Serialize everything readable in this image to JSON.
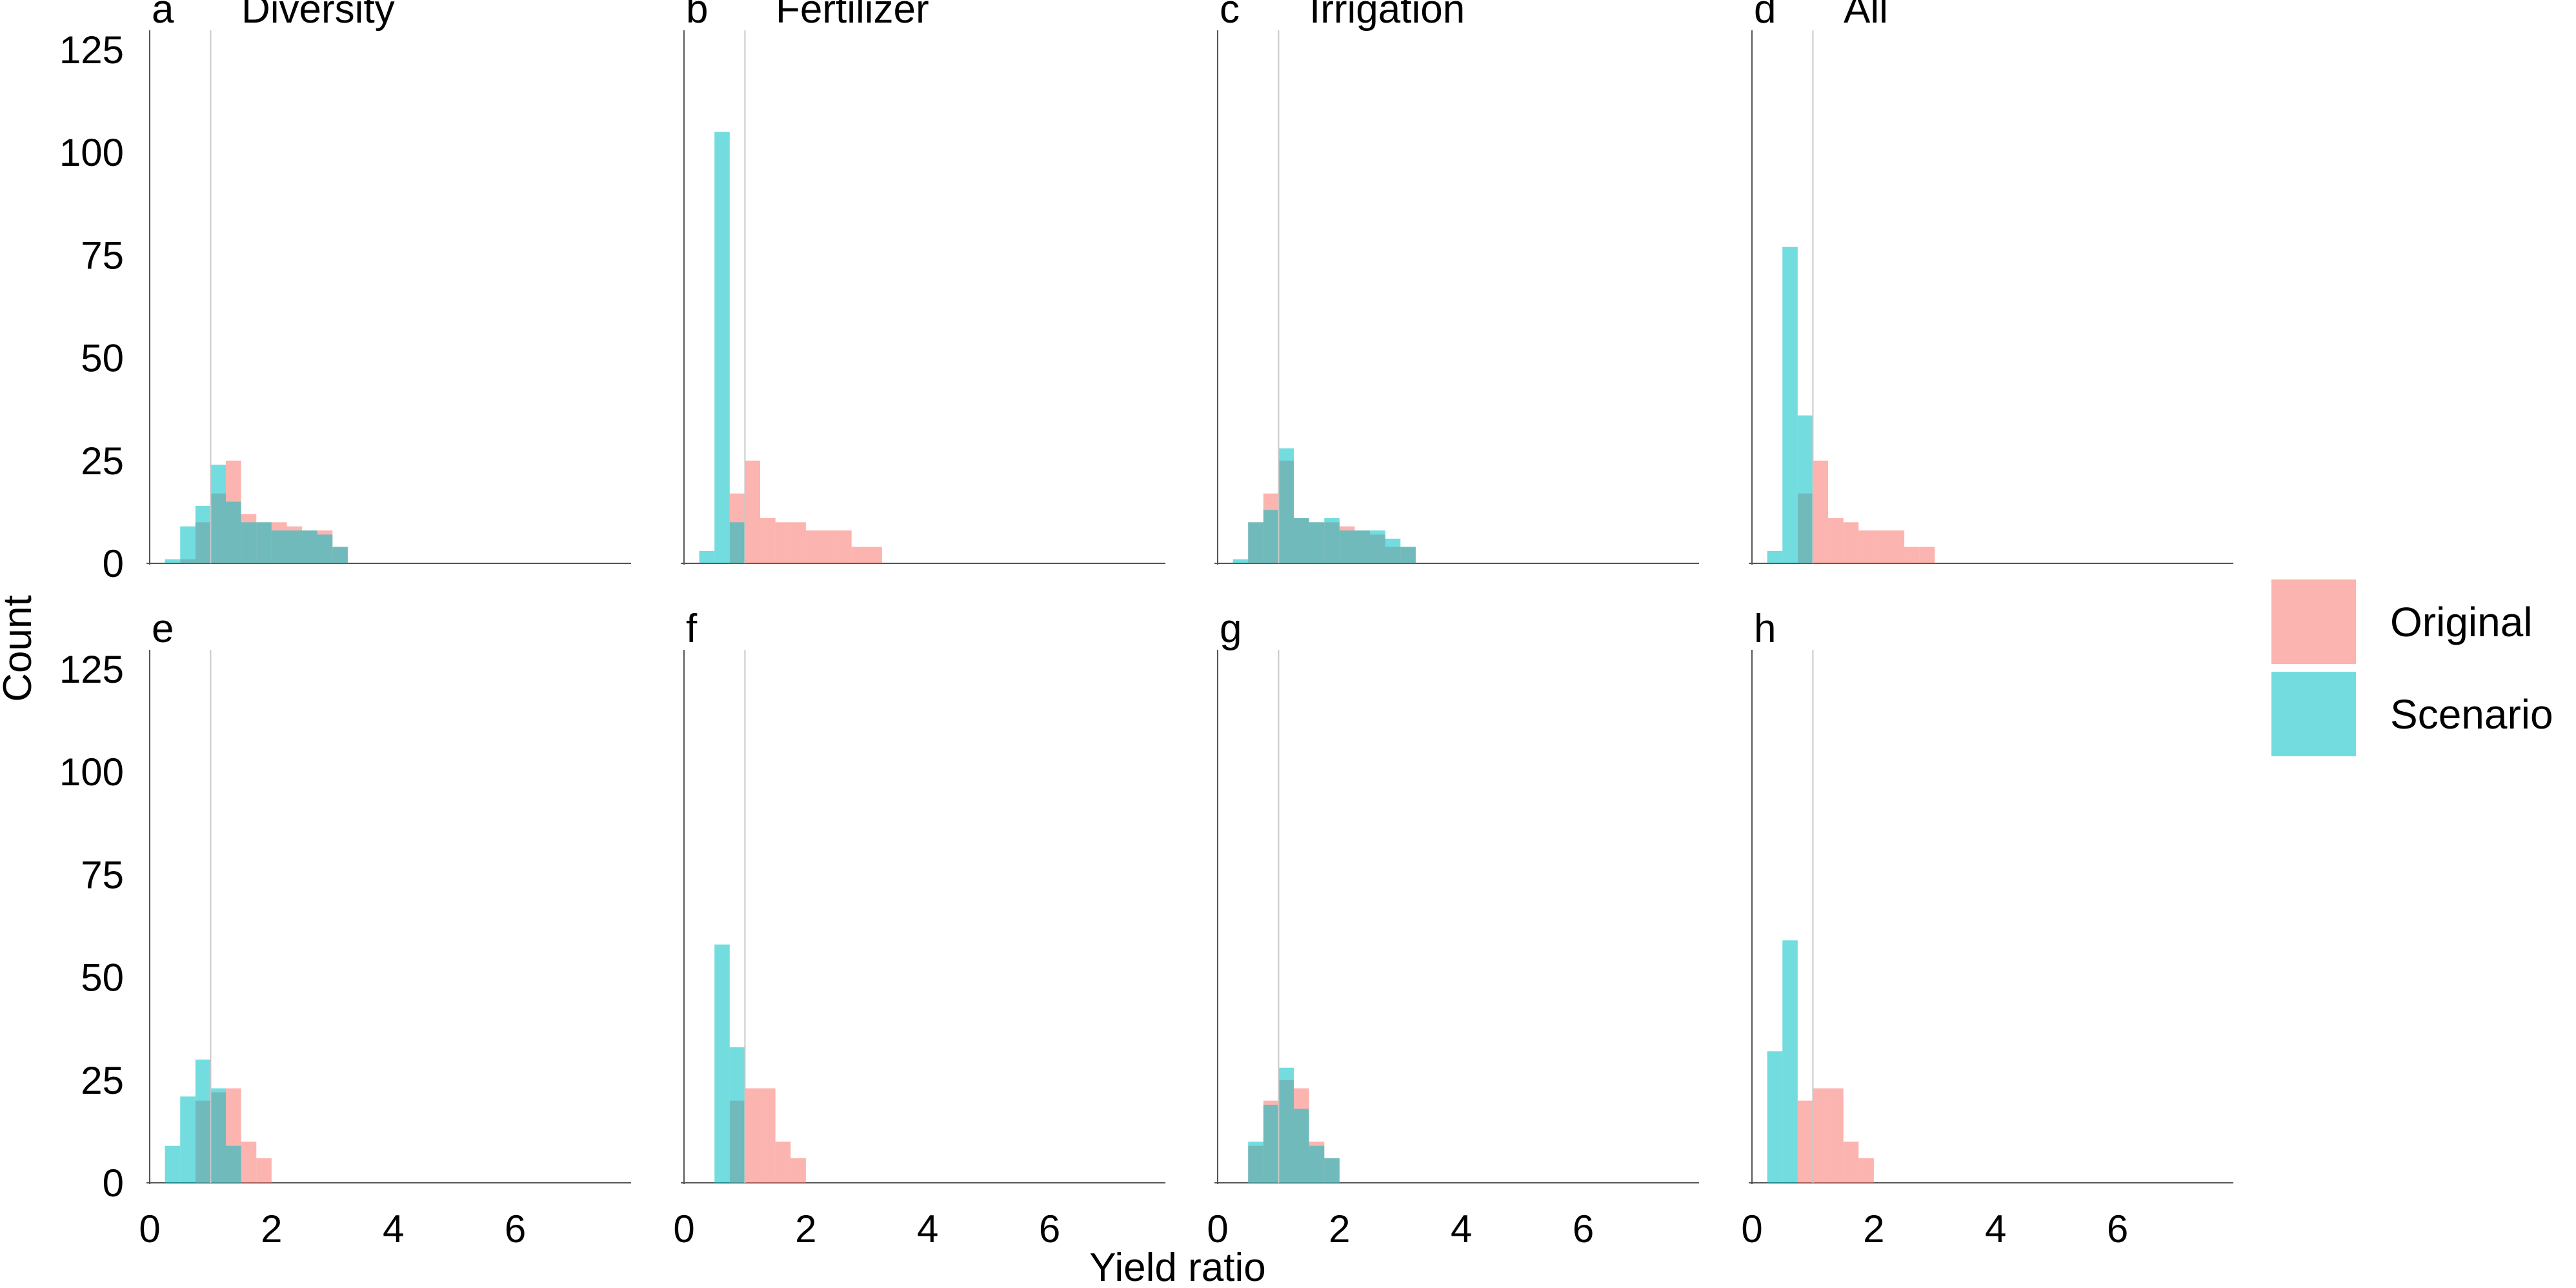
{
  "chart_data": {
    "type": "bar",
    "subtype": "overlapping-histogram-facets",
    "xlabel": "Yield ratio",
    "ylabel": "Count",
    "xlim": [
      0,
      7.9
    ],
    "ylim": [
      0,
      125
    ],
    "x_ticks": [
      0,
      2,
      4,
      6
    ],
    "y_ticks": [
      0,
      25,
      50,
      75,
      100,
      125
    ],
    "bin_width": 0.25,
    "reference_line_x": 1,
    "grid": false,
    "legend_position": "right",
    "opacity": 0.55,
    "series_styles": [
      {
        "name": "Original",
        "color": "#F8766D"
      },
      {
        "name": "Scenario",
        "color": "#00BFC4"
      }
    ],
    "panels": [
      {
        "letter": "a",
        "title": "Diversity",
        "series": [
          {
            "name": "Original",
            "bins": [
              [
                0.5,
                1
              ],
              [
                0.75,
                10
              ],
              [
                1.0,
                17
              ],
              [
                1.25,
                25
              ],
              [
                1.5,
                12
              ],
              [
                1.75,
                10
              ],
              [
                2.0,
                10
              ],
              [
                2.25,
                9
              ],
              [
                2.5,
                8
              ],
              [
                2.75,
                8
              ],
              [
                3.0,
                4
              ]
            ]
          },
          {
            "name": "Scenario",
            "bins": [
              [
                0.25,
                1
              ],
              [
                0.5,
                9
              ],
              [
                0.75,
                14
              ],
              [
                1.0,
                24
              ],
              [
                1.25,
                15
              ],
              [
                1.5,
                10
              ],
              [
                1.75,
                10
              ],
              [
                2.0,
                8
              ],
              [
                2.25,
                8
              ],
              [
                2.5,
                8
              ],
              [
                2.75,
                7
              ],
              [
                3.0,
                4
              ]
            ]
          }
        ]
      },
      {
        "letter": "b",
        "title": "Fertilizer",
        "series": [
          {
            "name": "Original",
            "bins": [
              [
                0.75,
                17
              ],
              [
                1.0,
                25
              ],
              [
                1.25,
                11
              ],
              [
                1.5,
                10
              ],
              [
                1.75,
                10
              ],
              [
                2.0,
                8
              ],
              [
                2.25,
                8
              ],
              [
                2.5,
                8
              ],
              [
                2.75,
                4
              ],
              [
                3.0,
                4
              ]
            ]
          },
          {
            "name": "Scenario",
            "bins": [
              [
                0.25,
                3
              ],
              [
                0.5,
                105
              ],
              [
                0.75,
                10
              ]
            ]
          }
        ]
      },
      {
        "letter": "c",
        "title": "Irrigation",
        "series": [
          {
            "name": "Original",
            "bins": [
              [
                0.5,
                10
              ],
              [
                0.75,
                17
              ],
              [
                1.0,
                25
              ],
              [
                1.25,
                11
              ],
              [
                1.5,
                10
              ],
              [
                1.75,
                10
              ],
              [
                2.0,
                9
              ],
              [
                2.25,
                8
              ],
              [
                2.5,
                7
              ],
              [
                2.75,
                4
              ],
              [
                3.0,
                4
              ]
            ]
          },
          {
            "name": "Scenario",
            "bins": [
              [
                0.25,
                1
              ],
              [
                0.5,
                10
              ],
              [
                0.75,
                13
              ],
              [
                1.0,
                28
              ],
              [
                1.25,
                11
              ],
              [
                1.5,
                10
              ],
              [
                1.75,
                11
              ],
              [
                2.0,
                8
              ],
              [
                2.25,
                8
              ],
              [
                2.5,
                8
              ],
              [
                2.75,
                6
              ],
              [
                3.0,
                4
              ]
            ]
          }
        ]
      },
      {
        "letter": "d",
        "title": "All",
        "series": [
          {
            "name": "Original",
            "bins": [
              [
                0.75,
                17
              ],
              [
                1.0,
                25
              ],
              [
                1.25,
                11
              ],
              [
                1.5,
                10
              ],
              [
                1.75,
                8
              ],
              [
                2.0,
                8
              ],
              [
                2.25,
                8
              ],
              [
                2.5,
                4
              ],
              [
                2.75,
                4
              ]
            ]
          },
          {
            "name": "Scenario",
            "bins": [
              [
                0.25,
                3
              ],
              [
                0.5,
                77
              ],
              [
                0.75,
                36
              ]
            ]
          }
        ]
      },
      {
        "letter": "e",
        "title": "",
        "series": [
          {
            "name": "Original",
            "bins": [
              [
                0.75,
                20
              ],
              [
                1.0,
                22
              ],
              [
                1.25,
                23
              ],
              [
                1.5,
                10
              ],
              [
                1.75,
                6
              ]
            ]
          },
          {
            "name": "Scenario",
            "bins": [
              [
                0.25,
                9
              ],
              [
                0.5,
                21
              ],
              [
                0.75,
                30
              ],
              [
                1.0,
                23
              ],
              [
                1.25,
                9
              ]
            ]
          }
        ]
      },
      {
        "letter": "f",
        "title": "",
        "series": [
          {
            "name": "Original",
            "bins": [
              [
                0.75,
                20
              ],
              [
                1.0,
                23
              ],
              [
                1.25,
                23
              ],
              [
                1.5,
                10
              ],
              [
                1.75,
                6
              ]
            ]
          },
          {
            "name": "Scenario",
            "bins": [
              [
                0.5,
                58
              ],
              [
                0.75,
                33
              ]
            ]
          }
        ]
      },
      {
        "letter": "g",
        "title": "",
        "series": [
          {
            "name": "Original",
            "bins": [
              [
                0.5,
                9
              ],
              [
                0.75,
                20
              ],
              [
                1.0,
                25
              ],
              [
                1.25,
                23
              ],
              [
                1.5,
                10
              ],
              [
                1.75,
                6
              ]
            ]
          },
          {
            "name": "Scenario",
            "bins": [
              [
                0.5,
                10
              ],
              [
                0.75,
                19
              ],
              [
                1.0,
                28
              ],
              [
                1.25,
                18
              ],
              [
                1.5,
                9
              ],
              [
                1.75,
                6
              ]
            ]
          }
        ]
      },
      {
        "letter": "h",
        "title": "",
        "series": [
          {
            "name": "Original",
            "bins": [
              [
                0.75,
                20
              ],
              [
                1.0,
                23
              ],
              [
                1.25,
                23
              ],
              [
                1.5,
                10
              ],
              [
                1.75,
                6
              ]
            ]
          },
          {
            "name": "Scenario",
            "bins": [
              [
                0.25,
                32
              ],
              [
                0.5,
                59
              ]
            ]
          }
        ]
      }
    ]
  }
}
